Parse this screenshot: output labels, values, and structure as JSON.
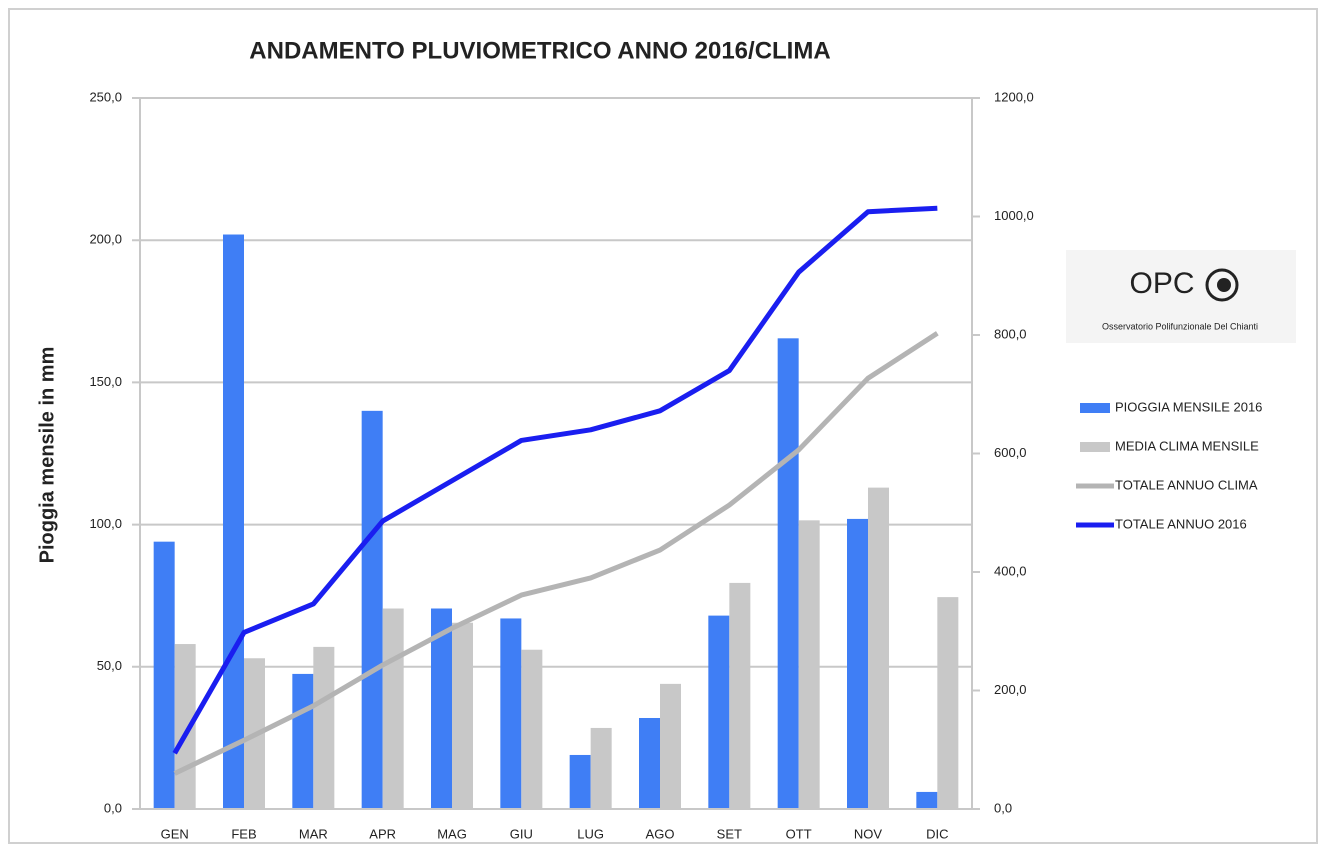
{
  "chart_data": {
    "type": "bar",
    "title": "ANDAMENTO PLUVIOMETRICO ANNO 2016/CLIMA",
    "ylabel": "Pioggia mensile in mm",
    "logo": {
      "text": "OPC",
      "subtitle": "Osservatorio Polifunzionale Del Chianti"
    },
    "categories": [
      "GEN",
      "FEB",
      "MAR",
      "APR",
      "MAG",
      "GIU",
      "LUG",
      "AGO",
      "SET",
      "OTT",
      "NOV",
      "DIC"
    ],
    "series": [
      {
        "name": "PIOGGIA MENSILE 2016",
        "type": "bar",
        "color": "#3f7ef5",
        "values": [
          94,
          202,
          47.5,
          140,
          70.5,
          67,
          19,
          32,
          68,
          165.5,
          102,
          6
        ]
      },
      {
        "name": "MEDIA CLIMA MENSILE",
        "type": "bar",
        "color": "#c8c8c8",
        "values": [
          58,
          53,
          57,
          70.5,
          65.5,
          56,
          28.5,
          44,
          79.5,
          101.5,
          113,
          74.5
        ]
      },
      {
        "name": "TOTALE ANNUO CLIMA",
        "type": "line",
        "axis": "y2",
        "color": "#b4b4b4",
        "values": [
          60,
          116,
          174,
          243,
          305,
          361,
          390,
          437,
          513,
          606,
          727,
          803
        ]
      },
      {
        "name": "TOTALE ANNUO 2016",
        "type": "line",
        "axis": "y2",
        "color": "#1a1ef0",
        "values": [
          94,
          298,
          346,
          486,
          554,
          622,
          640,
          672,
          740,
          906,
          1008,
          1014
        ]
      }
    ],
    "ylim": [
      0,
      250
    ],
    "yticks": [
      {
        "value": 0,
        "label": "0,0"
      },
      {
        "value": 50,
        "label": "50,0"
      },
      {
        "value": 100,
        "label": "100,0"
      },
      {
        "value": 150,
        "label": "150,0"
      },
      {
        "value": 200,
        "label": "200,0"
      },
      {
        "value": 250,
        "label": "250,0"
      }
    ],
    "y2lim": [
      0,
      1200
    ],
    "y2ticks": [
      {
        "value": 0,
        "label": "0,0"
      },
      {
        "value": 200,
        "label": "200,0"
      },
      {
        "value": 400,
        "label": "400,0"
      },
      {
        "value": 600,
        "label": "600,0"
      },
      {
        "value": 800,
        "label": "800,0"
      },
      {
        "value": 1000,
        "label": "1000,0"
      },
      {
        "value": 1200,
        "label": "1200,0"
      }
    ],
    "grid": true,
    "legend": "right"
  }
}
